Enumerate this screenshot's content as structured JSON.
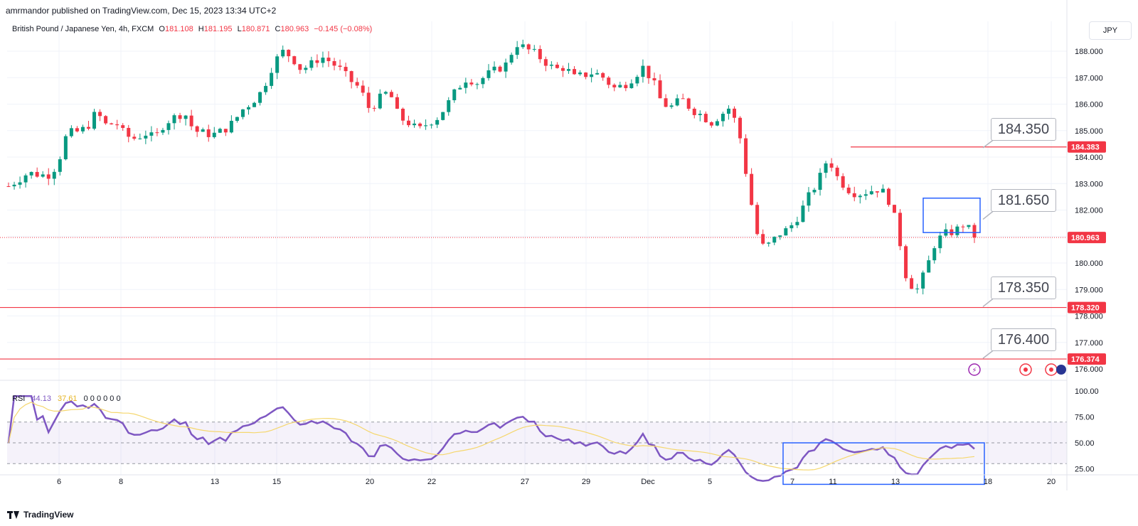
{
  "header": {
    "publisher": "amrmandor published on TradingView.com, Dec 15, 2023 13:34 UTC+2"
  },
  "legend": {
    "symbol": "British Pound / Japanese Yen, 4h, FXCM",
    "open_label": "O",
    "open": "181.108",
    "high_label": "H",
    "high": "181.195",
    "low_label": "L",
    "low": "180.871",
    "close_label": "C",
    "close": "180.963",
    "change": "−0.145 (−0.08%)"
  },
  "currency_button": "JPY",
  "rsi_legend": {
    "name": "RSI",
    "rsi_value": "44.13",
    "ma_value": "37.61",
    "zeros": "0 0 0 0 0 0"
  },
  "brand": "TradingView",
  "callouts": [
    "184.350",
    "181.650",
    "178.350",
    "176.400"
  ],
  "colors": {
    "up": "#089981",
    "down": "#f23645",
    "rsi": "#7e57c2",
    "rsi_ma": "#f5d76e",
    "level_line": "#f23645",
    "box": "#2962ff"
  },
  "chart_data": {
    "type": "candlestick",
    "symbol": "GBPJPY",
    "timeframe": "4h",
    "title": "British Pound / Japanese Yen, 4h, FXCM",
    "price_axis": {
      "ticks": [
        "188.000",
        "187.000",
        "186.000",
        "185.000",
        "184.000",
        "183.000",
        "182.000",
        "181.000",
        "180.000",
        "179.000",
        "178.000",
        "177.000",
        "176.000"
      ],
      "range": [
        175.8,
        188.6
      ]
    },
    "time_axis": {
      "ticks": [
        "6",
        "8",
        "13",
        "15",
        "20",
        "22",
        "27",
        "29",
        "Dec",
        "5",
        "7",
        "11",
        "13",
        "18",
        "20"
      ]
    },
    "price_labels": [
      {
        "value": "184.383",
        "color": "#f23645"
      },
      {
        "value": "180.963",
        "color": "#f23645"
      },
      {
        "value": "178.320",
        "color": "#f23645"
      },
      {
        "value": "176.374",
        "color": "#f23645"
      }
    ],
    "horizontal_levels": [
      184.383,
      178.32,
      176.374
    ],
    "current_price": 180.963,
    "price_path": [
      [
        0,
        182.9
      ],
      [
        2,
        183.4
      ],
      [
        4,
        183.3
      ],
      [
        5,
        183.7
      ],
      [
        6,
        184.9
      ],
      [
        7,
        184.95
      ],
      [
        8,
        185.1
      ],
      [
        9,
        185.7
      ],
      [
        10,
        185.2
      ],
      [
        11,
        185.3
      ],
      [
        12,
        184.8
      ],
      [
        13,
        184.7
      ],
      [
        14,
        184.9
      ],
      [
        15,
        184.7
      ],
      [
        16,
        185.3
      ],
      [
        17,
        185.5
      ],
      [
        18,
        185.7
      ],
      [
        19,
        185.0
      ],
      [
        20,
        184.9
      ],
      [
        21,
        184.85
      ],
      [
        22,
        185.0
      ],
      [
        23,
        185.3
      ],
      [
        24,
        185.8
      ],
      [
        25,
        186.1
      ],
      [
        26,
        186.5
      ],
      [
        27,
        187.4
      ],
      [
        28,
        188.0
      ],
      [
        29,
        187.8
      ],
      [
        30,
        187.3
      ],
      [
        31,
        187.5
      ],
      [
        32,
        187.8
      ],
      [
        33,
        187.6
      ],
      [
        34,
        187.3
      ],
      [
        35,
        186.9
      ],
      [
        36,
        186.6
      ],
      [
        37,
        185.8
      ],
      [
        38,
        186.2
      ],
      [
        39,
        186.5
      ],
      [
        40,
        185.5
      ],
      [
        41,
        185.3
      ],
      [
        42,
        185.0
      ],
      [
        43,
        185.3
      ],
      [
        44,
        185.5
      ],
      [
        45,
        186.0
      ],
      [
        46,
        186.6
      ],
      [
        47,
        187.0
      ],
      [
        48,
        186.8
      ],
      [
        49,
        187.1
      ],
      [
        50,
        187.3
      ],
      [
        51,
        187.5
      ],
      [
        52,
        188.3
      ],
      [
        53,
        188.1
      ],
      [
        54,
        187.9
      ],
      [
        55,
        187.6
      ],
      [
        56,
        187.3
      ],
      [
        57,
        187.4
      ],
      [
        58,
        187.0
      ],
      [
        59,
        187.1
      ],
      [
        60,
        187.2
      ],
      [
        61,
        187.0
      ],
      [
        62,
        186.6
      ],
      [
        63,
        186.7
      ],
      [
        64,
        187.0
      ],
      [
        65,
        187.4
      ],
      [
        66,
        186.9
      ],
      [
        67,
        186.0
      ],
      [
        68,
        185.9
      ],
      [
        69,
        186.2
      ],
      [
        70,
        185.8
      ],
      [
        71,
        185.6
      ],
      [
        72,
        185.3
      ],
      [
        73,
        185.6
      ],
      [
        74,
        185.9
      ],
      [
        75,
        184.7
      ],
      [
        76,
        182.5
      ],
      [
        77,
        180.6
      ],
      [
        78,
        180.7
      ],
      [
        79,
        181.1
      ],
      [
        80,
        181.3
      ],
      [
        81,
        181.8
      ],
      [
        82,
        182.5
      ],
      [
        83,
        183.1
      ],
      [
        84,
        184.0
      ],
      [
        85,
        183.2
      ],
      [
        86,
        182.8
      ],
      [
        87,
        182.6
      ],
      [
        88,
        182.7
      ],
      [
        89,
        182.8
      ],
      [
        90,
        182.6
      ],
      [
        91,
        181.5
      ],
      [
        92,
        179.5
      ],
      [
        93,
        178.9
      ],
      [
        94,
        179.7
      ],
      [
        95,
        180.8
      ],
      [
        96,
        181.1
      ],
      [
        97,
        181.2
      ],
      [
        98,
        181.5
      ],
      [
        99,
        180.963
      ]
    ],
    "rsi": {
      "name": "RSI",
      "value": 44.13,
      "ma_value": 37.61,
      "ticks": [
        "100.00",
        "75.00",
        "50.00",
        "25.00"
      ],
      "band": [
        30,
        70
      ],
      "range": [
        0,
        100
      ]
    },
    "annotations": [
      {
        "type": "callout",
        "text": "184.350",
        "price": 184.35
      },
      {
        "type": "callout",
        "text": "181.650",
        "price": 181.65
      },
      {
        "type": "callout",
        "text": "178.350",
        "price": 178.35
      },
      {
        "type": "callout",
        "text": "176.400",
        "price": 176.4
      },
      {
        "type": "rectangle",
        "price_top": 182.45,
        "price_bottom": 181.15
      },
      {
        "type": "rectangle",
        "pane": "rsi",
        "value_top": 50,
        "value_bottom": 10
      }
    ]
  }
}
